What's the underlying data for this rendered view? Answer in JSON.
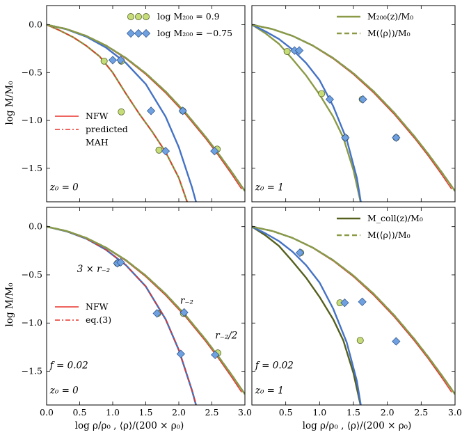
{
  "chart_data": {
    "type": "line",
    "layout": "2x2 grid",
    "shared_axes": {
      "xlim": [
        0.0,
        3.0
      ],
      "ylim": [
        -1.85,
        0.2
      ],
      "xticks": [
        0.0,
        0.5,
        1.0,
        1.5,
        2.0,
        2.5,
        3.0
      ],
      "xtick_labels": [
        "0.0",
        "0.5",
        "1.0",
        "1.5",
        "2.0",
        "2.5",
        "3.0"
      ],
      "yticks": [
        0.0,
        -0.5,
        -1.0,
        -1.5
      ],
      "ytick_labels": [
        "0.0",
        "−0.5",
        "−1.0",
        "−1.5"
      ],
      "xlabel": "log ρ/ρ₀ , ⟨ρ⟩/(200 × ρ₀)",
      "ylabel": "log M/M₀"
    },
    "colors": {
      "olive": "#8a9a46",
      "olive_dark": "#55601e",
      "blue": "#4472c4",
      "red": "#e8312a",
      "marker_green": "#c5dc78",
      "marker_blue": "#6fa1e0"
    },
    "curves": {
      "nfw": {
        "x": [
          0.0,
          0.3,
          0.6,
          0.9,
          1.2,
          1.5,
          1.8,
          2.1,
          2.4,
          2.6,
          2.8,
          2.95
        ],
        "y": [
          0.0,
          -0.046,
          -0.119,
          -0.222,
          -0.356,
          -0.52,
          -0.713,
          -0.935,
          -1.185,
          -1.367,
          -1.563,
          -1.718
        ]
      },
      "mean_tail": {
        "x": [
          0.0,
          0.3,
          0.6,
          0.9,
          1.2,
          1.5,
          1.8,
          2.1,
          2.4,
          2.6,
          2.8,
          3.0
        ],
        "y": [
          0.0,
          -0.045,
          -0.117,
          -0.218,
          -0.348,
          -0.508,
          -0.698,
          -0.918,
          -1.167,
          -1.348,
          -1.538,
          -1.738
        ]
      },
      "steep_high": {
        "x": [
          0.0,
          0.3,
          0.6,
          0.9,
          1.2,
          1.5,
          1.8,
          2.0,
          2.2,
          2.28
        ],
        "y": [
          0.0,
          -0.048,
          -0.125,
          -0.24,
          -0.4,
          -0.62,
          -0.96,
          -1.28,
          -1.7,
          -1.9
        ]
      },
      "olive_upper": {
        "x": [
          0.0,
          0.3,
          0.6,
          0.9,
          1.2,
          1.5,
          1.8,
          2.1,
          2.4,
          2.6,
          2.8,
          3.0
        ],
        "y": [
          0.0,
          -0.045,
          -0.117,
          -0.218,
          -0.348,
          -0.508,
          -0.698,
          -0.918,
          -1.167,
          -1.348,
          -1.538,
          -1.738
        ]
      },
      "panel_b_blue_steep": {
        "x": [
          0.0,
          0.2,
          0.4,
          0.6,
          0.8,
          1.0,
          1.2,
          1.4,
          1.55,
          1.62
        ],
        "y": [
          0.0,
          -0.07,
          -0.15,
          -0.26,
          -0.4,
          -0.58,
          -0.85,
          -1.2,
          -1.6,
          -1.9
        ]
      },
      "panel_b_olive_steep": {
        "x": [
          0.0,
          0.2,
          0.4,
          0.6,
          0.8,
          1.0,
          1.2,
          1.35,
          1.5,
          1.62
        ],
        "y": [
          0.0,
          -0.09,
          -0.2,
          -0.36,
          -0.53,
          -0.73,
          -0.96,
          -1.18,
          -1.52,
          -1.9
        ]
      },
      "panel_a_olive_steep": {
        "x": [
          0.0,
          0.2,
          0.4,
          0.6,
          0.8,
          1.0,
          1.2,
          1.4,
          1.6,
          1.8,
          2.0,
          2.15
        ],
        "y": [
          0.0,
          -0.06,
          -0.13,
          -0.22,
          -0.33,
          -0.5,
          -0.72,
          -0.93,
          -1.12,
          -1.33,
          -1.6,
          -1.9
        ]
      }
    },
    "panels": [
      {
        "id": "a",
        "annotations": [
          {
            "text": "z₀ = 0",
            "x": 0.05,
            "y": -1.73
          }
        ],
        "legend_top": [
          {
            "label": "log M₂₀₀ = 0.9",
            "marker": "circle",
            "color": "marker_green"
          },
          {
            "label": "log M₂₀₀ = −0.75",
            "marker": "diamond",
            "color": "marker_blue"
          }
        ],
        "legend_bottom": [
          {
            "label": "NFW",
            "style": "solid",
            "color": "red"
          },
          {
            "label": "predicted",
            "style": "dashdot",
            "color": "red"
          },
          {
            "label": "MAH",
            "style": "none",
            "color": "red"
          }
        ],
        "lines": [
          {
            "name": "nfw",
            "curve": "nfw",
            "color": "red",
            "style": "solid"
          },
          {
            "name": "olive-mean",
            "curve": "mean_tail",
            "color": "olive",
            "style": "dashed"
          },
          {
            "name": "blue-mean",
            "curve": "mean_tail",
            "color": "blue",
            "style": "dashed"
          },
          {
            "name": "olive-mah",
            "curve": "panel_a_olive_steep",
            "color": "olive",
            "style": "solid"
          },
          {
            "name": "blue-mah",
            "curve": "steep_high",
            "color": "blue",
            "style": "solid"
          },
          {
            "name": "predicted-mah",
            "curve": "panel_a_olive_steep",
            "color": "red",
            "style": "dashdot"
          },
          {
            "name": "olive-upper",
            "curve": "olive_upper",
            "color": "olive",
            "style": "solid"
          }
        ],
        "markers": [
          {
            "shape": "circle",
            "color": "marker_green",
            "x": 1.13,
            "y": -0.38
          },
          {
            "shape": "circle",
            "color": "marker_green",
            "x": 0.87,
            "y": -0.38
          },
          {
            "shape": "circle",
            "color": "marker_green",
            "x": 1.13,
            "y": -0.91
          },
          {
            "shape": "circle",
            "color": "marker_green",
            "x": 1.7,
            "y": -1.31
          },
          {
            "shape": "circle",
            "color": "marker_green",
            "x": 2.06,
            "y": -0.9
          },
          {
            "shape": "circle",
            "color": "marker_green",
            "x": 2.58,
            "y": -1.3
          },
          {
            "shape": "diamond",
            "color": "marker_blue",
            "x": 1.0,
            "y": -0.37
          },
          {
            "shape": "diamond",
            "color": "marker_blue",
            "x": 1.12,
            "y": -0.37
          },
          {
            "shape": "diamond",
            "color": "marker_blue",
            "x": 1.58,
            "y": -0.9
          },
          {
            "shape": "diamond",
            "color": "marker_blue",
            "x": 1.8,
            "y": -1.32
          },
          {
            "shape": "diamond",
            "color": "marker_blue",
            "x": 2.06,
            "y": -0.9
          },
          {
            "shape": "diamond",
            "color": "marker_blue",
            "x": 2.54,
            "y": -1.32
          }
        ]
      },
      {
        "id": "b",
        "annotations": [
          {
            "text": "z₀ = 1",
            "x": 0.05,
            "y": -1.73
          }
        ],
        "legend_top": [
          {
            "label": "M₂₀₀(z)/M₀",
            "style": "solid",
            "color": "olive"
          },
          {
            "label": "M(⟨ρ⟩)/M₀",
            "style": "dashed",
            "color": "olive"
          }
        ],
        "lines": [
          {
            "name": "nfw",
            "curve": "nfw",
            "color": "red",
            "style": "solid"
          },
          {
            "name": "olive-mean",
            "curve": "mean_tail",
            "color": "olive",
            "style": "dashed"
          },
          {
            "name": "blue-mean",
            "curve": "mean_tail",
            "color": "blue",
            "style": "dashed"
          },
          {
            "name": "olive-mah",
            "curve": "panel_b_olive_steep",
            "color": "olive",
            "style": "solid"
          },
          {
            "name": "blue-mah",
            "curve": "panel_b_blue_steep",
            "color": "blue",
            "style": "solid"
          },
          {
            "name": "olive-upper",
            "curve": "olive_upper",
            "color": "olive",
            "style": "solid"
          }
        ],
        "markers": [
          {
            "shape": "circle",
            "color": "marker_green",
            "x": 0.52,
            "y": -0.28
          },
          {
            "shape": "circle",
            "color": "marker_green",
            "x": 1.03,
            "y": -0.72
          },
          {
            "shape": "circle",
            "color": "marker_green",
            "x": 1.38,
            "y": -1.18
          },
          {
            "shape": "circle",
            "color": "marker_green",
            "x": 1.63,
            "y": -0.78
          },
          {
            "shape": "circle",
            "color": "marker_green",
            "x": 2.13,
            "y": -1.18
          },
          {
            "shape": "diamond",
            "color": "marker_blue",
            "x": 0.63,
            "y": -0.27
          },
          {
            "shape": "diamond",
            "color": "marker_blue",
            "x": 0.7,
            "y": -0.27
          },
          {
            "shape": "diamond",
            "color": "marker_blue",
            "x": 1.15,
            "y": -0.78
          },
          {
            "shape": "diamond",
            "color": "marker_blue",
            "x": 1.38,
            "y": -1.18
          },
          {
            "shape": "diamond",
            "color": "marker_blue",
            "x": 1.64,
            "y": -0.78
          },
          {
            "shape": "diamond",
            "color": "marker_blue",
            "x": 2.13,
            "y": -1.18
          }
        ]
      },
      {
        "id": "c",
        "annotations": [
          {
            "text": "f = 0.02",
            "x": 0.05,
            "y": -1.47
          },
          {
            "text": "z₀ = 0",
            "x": 0.05,
            "y": -1.73
          },
          {
            "text": "3 × r₋₂",
            "x": 0.46,
            "y": -0.47
          },
          {
            "text": "r₋₂",
            "x": 2.02,
            "y": -0.8
          },
          {
            "text": "r₋₂/2",
            "x": 2.55,
            "y": -1.16
          }
        ],
        "legend_bottom": [
          {
            "label": "NFW",
            "style": "solid",
            "color": "red"
          },
          {
            "label": "eq.(3)",
            "style": "dashdot",
            "color": "red"
          }
        ],
        "lines": [
          {
            "name": "nfw",
            "curve": "nfw",
            "color": "red",
            "style": "solid"
          },
          {
            "name": "olive-mean",
            "curve": "mean_tail",
            "color": "olive",
            "style": "dashed"
          },
          {
            "name": "blue-mean",
            "curve": "mean_tail",
            "color": "blue",
            "style": "dashed"
          },
          {
            "name": "olive-mah",
            "curve": "steep_high",
            "color": "olive",
            "style": "solid"
          },
          {
            "name": "blue-mah",
            "curve": "steep_high",
            "color": "blue",
            "style": "solid"
          },
          {
            "name": "eq3",
            "curve": "steep_high",
            "color": "red",
            "style": "dashdot"
          },
          {
            "name": "olive-upper",
            "curve": "olive_upper",
            "color": "olive",
            "style": "solid"
          }
        ],
        "markers": [
          {
            "shape": "circle",
            "color": "marker_green",
            "x": 1.07,
            "y": -0.38
          },
          {
            "shape": "circle",
            "color": "marker_green",
            "x": 1.68,
            "y": -0.9
          },
          {
            "shape": "circle",
            "color": "marker_green",
            "x": 2.07,
            "y": -0.9
          },
          {
            "shape": "circle",
            "color": "marker_green",
            "x": 2.59,
            "y": -1.31
          },
          {
            "shape": "diamond",
            "color": "marker_blue",
            "x": 1.07,
            "y": -0.38
          },
          {
            "shape": "diamond",
            "color": "marker_blue",
            "x": 1.12,
            "y": -0.37
          },
          {
            "shape": "diamond",
            "color": "marker_blue",
            "x": 1.67,
            "y": -0.9
          },
          {
            "shape": "diamond",
            "color": "marker_blue",
            "x": 2.08,
            "y": -0.89
          },
          {
            "shape": "diamond",
            "color": "marker_blue",
            "x": 2.03,
            "y": -1.32
          },
          {
            "shape": "diamond",
            "color": "marker_blue",
            "x": 2.55,
            "y": -1.33
          }
        ]
      },
      {
        "id": "d",
        "annotations": [
          {
            "text": "f = 0.02",
            "x": 0.05,
            "y": -1.47
          },
          {
            "text": "z₀ = 1",
            "x": 0.05,
            "y": -1.73
          }
        ],
        "legend_top": [
          {
            "label": "M_coll(z)/M₀",
            "style": "solid",
            "color": "olive_dark"
          },
          {
            "label": "M(⟨ρ⟩)/M₀",
            "style": "dashed",
            "color": "olive"
          }
        ],
        "lines": [
          {
            "name": "nfw",
            "curve": "nfw",
            "color": "red",
            "style": "solid"
          },
          {
            "name": "olive-mean",
            "curve": "mean_tail",
            "color": "olive",
            "style": "dashed"
          },
          {
            "name": "blue-mean",
            "curve": "mean_tail",
            "color": "blue",
            "style": "dashed"
          },
          {
            "name": "olive-mah",
            "curve": "panel_b_olive_steep",
            "color": "olive_dark",
            "style": "solid"
          },
          {
            "name": "blue-mah",
            "curve": "panel_b_blue_steep",
            "color": "blue",
            "style": "solid"
          },
          {
            "name": "olive-upper",
            "curve": "olive_upper",
            "color": "olive",
            "style": "solid"
          }
        ],
        "markers": [
          {
            "shape": "circle",
            "color": "marker_green",
            "x": 0.72,
            "y": -0.27
          },
          {
            "shape": "circle",
            "color": "marker_green",
            "x": 1.3,
            "y": -0.79
          },
          {
            "shape": "circle",
            "color": "marker_green",
            "x": 1.6,
            "y": -1.18
          },
          {
            "shape": "diamond",
            "color": "marker_blue",
            "x": 0.71,
            "y": -0.27
          },
          {
            "shape": "diamond",
            "color": "marker_blue",
            "x": 1.37,
            "y": -0.79
          },
          {
            "shape": "diamond",
            "color": "marker_blue",
            "x": 1.63,
            "y": -0.78
          },
          {
            "shape": "diamond",
            "color": "marker_blue",
            "x": 2.13,
            "y": -1.19
          }
        ]
      }
    ]
  }
}
